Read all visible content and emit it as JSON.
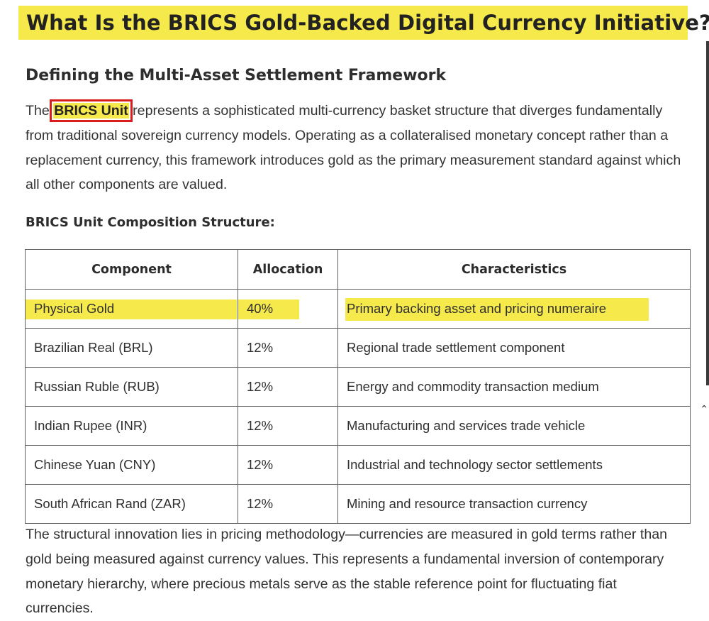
{
  "article": {
    "title": "What Is the BRICS Gold-Backed Digital Currency Initiative?",
    "section_heading": "Defining the Multi-Asset Settlement Framework",
    "intro": {
      "prefix": "The ",
      "highlighted_term": "BRICS Unit",
      "rest": " represents a sophisticated multi-currency basket structure that diverges fundamentally from traditional sovereign currency models. Operating as a collateralised monetary concept rather than a replacement currency, this framework introduces gold as the primary measurement standard against which all other components are valued."
    },
    "table_caption": "BRICS Unit Composition Structure:",
    "closing": "The structural innovation lies in pricing methodology—currencies are measured in gold terms rather than gold being measured against currency values. This represents a fundamental inversion of contemporary monetary hierarchy, where precious metals serve as the stable reference point for fluctuating fiat currencies."
  },
  "table": {
    "headers": [
      "Component",
      "Allocation",
      "Characteristics"
    ],
    "rows": [
      {
        "component": "Physical Gold",
        "allocation": "40%",
        "characteristics": "Primary backing asset and pricing numeraire",
        "highlighted": true
      },
      {
        "component": "Brazilian Real (BRL)",
        "allocation": "12%",
        "characteristics": "Regional trade settlement component"
      },
      {
        "component": "Russian Ruble (RUB)",
        "allocation": "12%",
        "characteristics": "Energy and commodity transaction medium"
      },
      {
        "component": "Indian Rupee (INR)",
        "allocation": "12%",
        "characteristics": "Manufacturing and services trade vehicle"
      },
      {
        "component": "Chinese Yuan (CNY)",
        "allocation": "12%",
        "characteristics": "Industrial and technology sector settlements"
      },
      {
        "component": "South African Rand (ZAR)",
        "allocation": "12%",
        "characteristics": "Mining and resource transaction currency"
      }
    ]
  },
  "colors": {
    "highlight_yellow": "#f6e94b",
    "annotation_red": "#d91c1c",
    "text": "#333333"
  }
}
